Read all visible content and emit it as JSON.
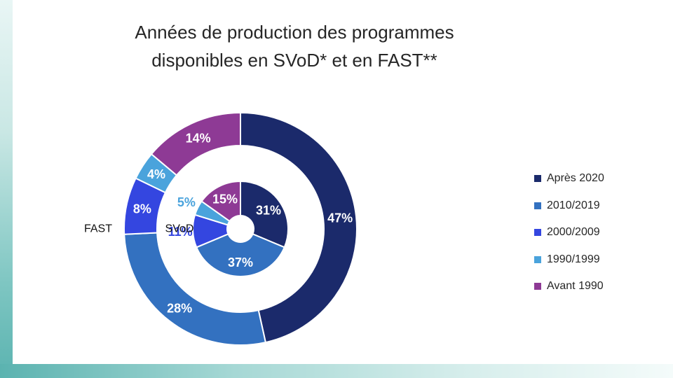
{
  "chart_data": {
    "type": "donut",
    "title": "Années de production des programmes\ndisponibles en SVoD* et en FAST**",
    "categories": [
      "Après 2020",
      "2010/2019",
      "2000/2009",
      "1990/1999",
      "Avant 1990"
    ],
    "colors": [
      "#1b2a6b",
      "#3371c0",
      "#3446e0",
      "#4aa3dc",
      "#8e3a95"
    ],
    "series": [
      {
        "name": "FAST",
        "ring": "outer",
        "values": [
          47,
          28,
          8,
          4,
          14
        ],
        "labels": [
          "47%",
          "28%",
          "8%",
          "4%",
          "14%"
        ]
      },
      {
        "name": "SVoD",
        "ring": "inner",
        "values": [
          31,
          37,
          11,
          5,
          15
        ],
        "labels": [
          "31%",
          "37%",
          "11%",
          "5%",
          "15%"
        ]
      }
    ],
    "legend_position": "right"
  }
}
